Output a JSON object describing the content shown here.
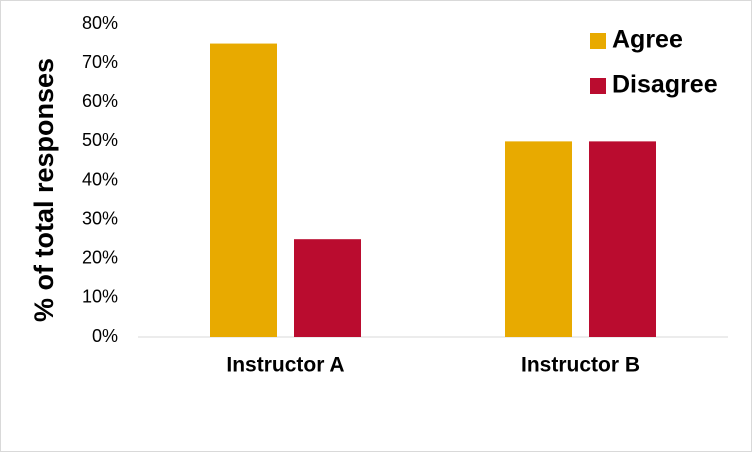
{
  "chart_data": {
    "type": "bar",
    "y_label": "% of total responses",
    "categories": [
      "Instructor A",
      "Instructor B"
    ],
    "series": [
      {
        "name": "Agree",
        "color": "#e8aa00",
        "values": [
          75,
          50
        ]
      },
      {
        "name": "Disagree",
        "color": "#ba0c2f",
        "values": [
          25,
          50
        ]
      }
    ],
    "ylim": [
      0,
      80
    ],
    "yticks": [
      {
        "value": 0,
        "label": "0%"
      },
      {
        "value": 10,
        "label": "10%"
      },
      {
        "value": 20,
        "label": "20%"
      },
      {
        "value": 30,
        "label": "30%"
      },
      {
        "value": 40,
        "label": "40%"
      },
      {
        "value": 50,
        "label": "50%"
      },
      {
        "value": 60,
        "label": "60%"
      },
      {
        "value": 70,
        "label": "70%"
      },
      {
        "value": 80,
        "label": "80%"
      }
    ],
    "grid": false,
    "legend": "top-right"
  }
}
